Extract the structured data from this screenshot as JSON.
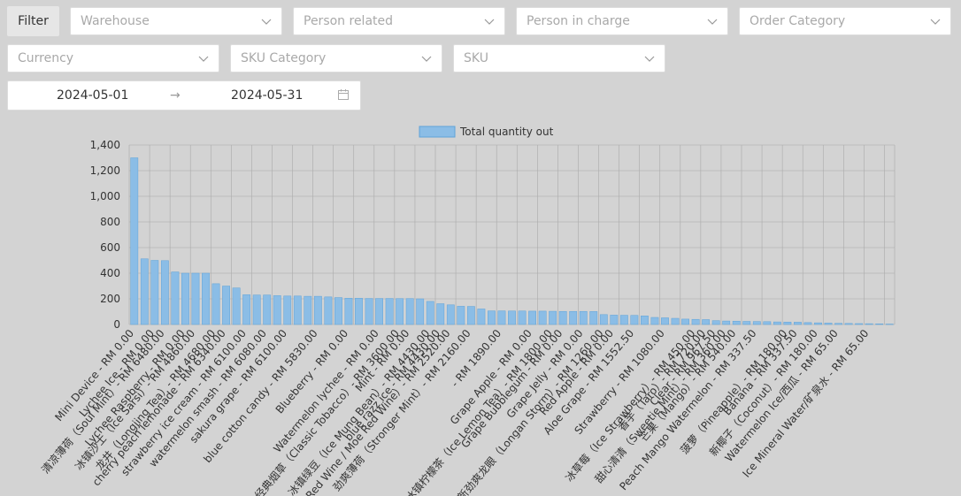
{
  "filters": {
    "button_label": "Filter",
    "selects": [
      {
        "id": "warehouse",
        "placeholder": "Warehouse"
      },
      {
        "id": "person-related",
        "placeholder": "Person related"
      },
      {
        "id": "person-in-charge",
        "placeholder": "Person in charge"
      },
      {
        "id": "order-category",
        "placeholder": "Order Category"
      },
      {
        "id": "currency",
        "placeholder": "Currency"
      },
      {
        "id": "sku-category",
        "placeholder": "SKU Category"
      },
      {
        "id": "sku",
        "placeholder": "SKU"
      }
    ],
    "date_range": {
      "start": "2024-05-01",
      "separator": "→",
      "end": "2024-05-31"
    }
  },
  "colors": {
    "bar_fill": "#8bbde6",
    "bar_stroke": "#5fa3d8",
    "grid": "#aaaaaa"
  },
  "chart_data": {
    "type": "bar",
    "legend": "Total quantity out",
    "ylim": [
      0,
      1400
    ],
    "yticks": [
      "0",
      "200",
      "400",
      "600",
      "800",
      "1,000",
      "1,200",
      "1,400"
    ],
    "ytick_values": [
      0,
      200,
      400,
      600,
      800,
      1000,
      1200,
      1400
    ],
    "values": [
      1300,
      512,
      500,
      498,
      410,
      400,
      400,
      400,
      318,
      300,
      285,
      232,
      230,
      230,
      225,
      222,
      222,
      220,
      220,
      215,
      210,
      205,
      205,
      203,
      203,
      203,
      202,
      202,
      200,
      180,
      162,
      153,
      142,
      141,
      121,
      106,
      106,
      105,
      105,
      104,
      104,
      103,
      102,
      102,
      102,
      101,
      77,
      73,
      72,
      71,
      67,
      55,
      52,
      48,
      42,
      40,
      38,
      30,
      27,
      26,
      24,
      23,
      22,
      20,
      19,
      18,
      15,
      13,
      11,
      9,
      8,
      7,
      6,
      5,
      3
    ],
    "category_labels": [
      {
        "index": 0,
        "label": "Mini Device - RM 0.00"
      },
      {
        "index": 2,
        "label": "Lychee Ice - RM 0.00"
      },
      {
        "index": 3,
        "label": "清凉薄荷（Soul Mint）- RM 6480.00"
      },
      {
        "index": 5,
        "label": "Lychee Raspberry - RM 0.00"
      },
      {
        "index": 6,
        "label": "冰镇沙士（Ice Sarsi）- RM 4860.00"
      },
      {
        "index": 8,
        "label": "龙井（Longjing Tea）- RM 4680.00"
      },
      {
        "index": 9,
        "label": "cherry peach lemonade - RM 6340.00"
      },
      {
        "index": 11,
        "label": "strawberry ice cream - RM 6100.00"
      },
      {
        "index": 13,
        "label": "watermelon smash - RM 6080.00"
      },
      {
        "index": 15,
        "label": "sakura grape - RM 6100.00"
      },
      {
        "index": 18,
        "label": "blue cotton candy - RM 5830.00"
      },
      {
        "index": 21,
        "label": "Blueberry - RM 0.00"
      },
      {
        "index": 24,
        "label": "Watermelon lychee - RM 0.00"
      },
      {
        "index": 26,
        "label": "经典烟草（Classic Tobacco）- RM 3600.00"
      },
      {
        "index": 27,
        "label": "Mint - RM 0.00"
      },
      {
        "index": 29,
        "label": "冰镇绿豆（Ice Mung Bean）- RM 4430.00"
      },
      {
        "index": 30,
        "label": "blue razz ice - RM 4430.00"
      },
      {
        "index": 31,
        "label": "Moe Red Wine / Moe Red Wine）- RM 2520.00"
      },
      {
        "index": 33,
        "label": "劲爽薄荷（Stronger Mint）- RM 2160.00"
      },
      {
        "index": 36,
        "label": "- RM 1890.00"
      },
      {
        "index": 39,
        "label": "Grape Apple - RM 0.00"
      },
      {
        "index": 41,
        "label": "冰镇柠檬茶（Ice Lemon Tea）- RM 1800.00"
      },
      {
        "index": 42,
        "label": "Grape Bubblegum - RM 0.00"
      },
      {
        "index": 44,
        "label": "Grape Jelly - RM 0.00"
      },
      {
        "index": 46,
        "label": "新劲爽龙眼（Longan Storm）- RM 1260.00"
      },
      {
        "index": 47,
        "label": "Red Apple - RM 0.00"
      },
      {
        "index": 49,
        "label": "Aloe Grape - RM 1552.50"
      },
      {
        "index": 52,
        "label": "Strawberry - RM 1080.00"
      },
      {
        "index": 55,
        "label": "冰草莓（Ice Strawberry）- RM 450.00"
      },
      {
        "index": 56,
        "label": "香芋（Taro）- RM 720.00"
      },
      {
        "index": 57,
        "label": "Clear - RM 967.50"
      },
      {
        "index": 58,
        "label": "甜心清清（Sweetie Mint）- RM 360.00"
      },
      {
        "index": 59,
        "label": "芒果（Mango）- RM 540.00"
      },
      {
        "index": 61,
        "label": "Peach Mango Watermelon - RM 337.50"
      },
      {
        "index": 64,
        "label": "菠萝（Pineapple）- RM 180.00"
      },
      {
        "index": 65,
        "label": "Banana - RM 337.50"
      },
      {
        "index": 67,
        "label": "新椰子（Coconut）- RM 180.00"
      },
      {
        "index": 69,
        "label": "Watermelon Ice/西瓜 - RM 65.00"
      },
      {
        "index": 72,
        "label": "Ice Mineral Water/矿泉水 - RM 65.00"
      }
    ]
  }
}
